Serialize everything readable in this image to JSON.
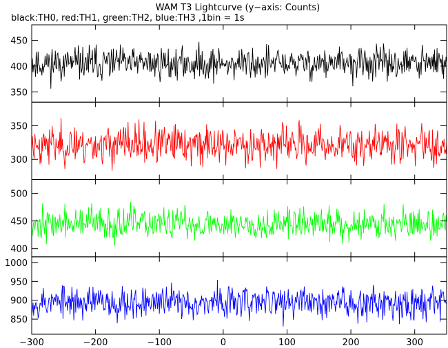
{
  "chart_data": {
    "type": "line",
    "title": "WAM T3 Lightcurve (y−axis: Counts)",
    "subtitle": "black:TH0, red:TH1, green:TH2, blue:TH3 ,1bin = 1s",
    "xlim": [
      -300,
      350
    ],
    "xticks": [
      -300,
      -200,
      -100,
      0,
      100,
      200,
      300
    ],
    "xtick_labels": [
      "−300",
      "−200",
      "−100",
      "0",
      "100",
      "200",
      "300"
    ],
    "grid": false,
    "panels": [
      {
        "color": "#000000",
        "ylim": [
          330,
          480
        ],
        "yticks": [
          350,
          400,
          450
        ],
        "ytick_labels": [
          "350",
          "400",
          "450"
        ],
        "mean": 405,
        "amplitude": 22,
        "seed": 11
      },
      {
        "color": "#ff0000",
        "ylim": [
          270,
          385
        ],
        "yticks": [
          300,
          350
        ],
        "ytick_labels": [
          "300",
          "350"
        ],
        "mean": 322,
        "amplitude": 20,
        "seed": 23
      },
      {
        "color": "#00ff00",
        "ylim": [
          385,
          525
        ],
        "yticks": [
          400,
          450,
          500
        ],
        "ytick_labels": [
          "400",
          "450",
          "500"
        ],
        "mean": 445,
        "amplitude": 20,
        "seed": 37
      },
      {
        "color": "#0000ff",
        "ylim": [
          810,
          1015
        ],
        "yticks": [
          850,
          900,
          950,
          1000
        ],
        "ytick_labels": [
          "850",
          "900",
          "950",
          "1000"
        ],
        "mean": 895,
        "amplitude": 30,
        "seed": 53
      }
    ]
  }
}
